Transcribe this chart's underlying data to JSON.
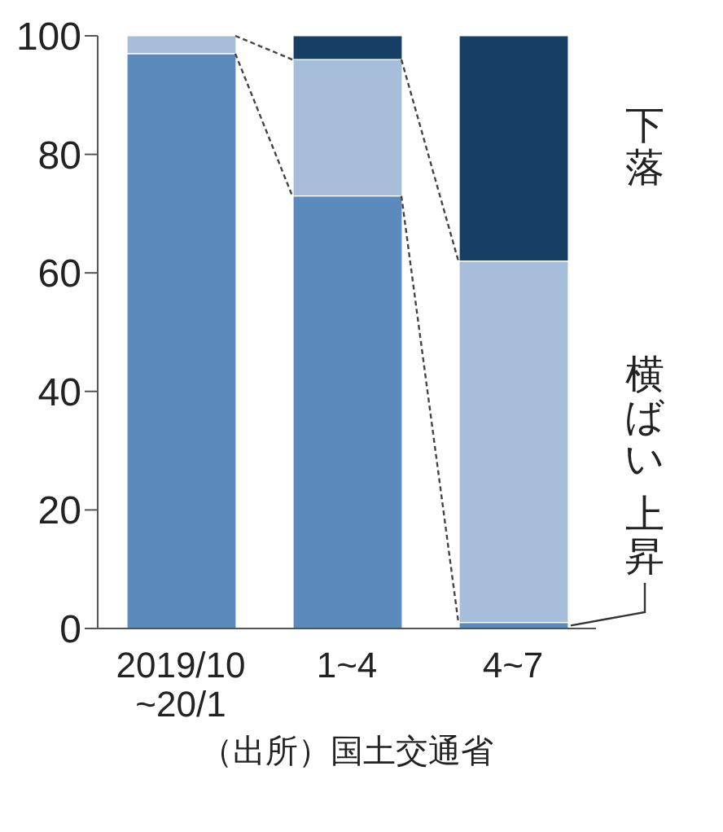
{
  "chart_data": {
    "type": "bar",
    "stacked": true,
    "categories": [
      "2019/10\n~20/1",
      "1~4",
      "4~7"
    ],
    "series": [
      {
        "name": "上昇",
        "color": "#5b8bbd",
        "values": [
          97,
          73,
          1
        ]
      },
      {
        "name": "横ばい",
        "color": "#a7bedb",
        "values": [
          3,
          23,
          61
        ]
      },
      {
        "name": "下落",
        "color": "#163f66",
        "values": [
          0,
          4,
          38
        ]
      }
    ],
    "ylim": [
      0,
      100
    ],
    "yticks": [
      0,
      20,
      40,
      60,
      80,
      100
    ],
    "annotations": [
      "（出所）国土交通省"
    ]
  }
}
